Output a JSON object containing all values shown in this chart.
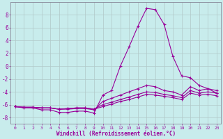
{
  "xlabel": "Windchill (Refroidissement éolien,°C)",
  "xlim": [
    -0.5,
    23.5
  ],
  "ylim": [
    -9,
    10
  ],
  "yticks": [
    -8,
    -6,
    -4,
    -2,
    0,
    2,
    4,
    6,
    8
  ],
  "xticks": [
    0,
    1,
    2,
    3,
    4,
    5,
    6,
    7,
    8,
    9,
    10,
    11,
    12,
    13,
    14,
    15,
    16,
    17,
    18,
    19,
    20,
    21,
    22,
    23
  ],
  "bg_color": "#c8ecec",
  "line_color": "#990099",
  "grid_color": "#b0c8c8",
  "lines": [
    {
      "x": [
        0,
        1,
        2,
        3,
        4,
        5,
        6,
        7,
        8,
        9,
        10,
        11,
        12,
        13,
        14,
        15,
        16,
        17,
        18,
        19,
        20,
        21,
        22,
        23
      ],
      "y": [
        -6.3,
        -6.5,
        -6.5,
        -6.8,
        -6.8,
        -7.2,
        -7.2,
        -7.0,
        -7.0,
        -7.3,
        -4.5,
        -3.8,
        0.0,
        3.0,
        6.2,
        9.0,
        8.8,
        6.5,
        1.5,
        -1.5,
        -1.8,
        -3.0,
        -3.5,
        -4.2
      ]
    },
    {
      "x": [
        0,
        1,
        2,
        3,
        4,
        5,
        6,
        7,
        8,
        9,
        10,
        11,
        12,
        13,
        14,
        15,
        16,
        17,
        18,
        19,
        20,
        21,
        22,
        23
      ],
      "y": [
        -6.3,
        -6.4,
        -6.4,
        -6.5,
        -6.5,
        -6.7,
        -6.7,
        -6.6,
        -6.6,
        -6.8,
        -5.5,
        -5.0,
        -4.5,
        -4.0,
        -3.5,
        -3.0,
        -3.2,
        -3.8,
        -4.0,
        -4.5,
        -3.2,
        -3.8,
        -3.5,
        -3.8
      ]
    },
    {
      "x": [
        0,
        1,
        2,
        3,
        4,
        5,
        6,
        7,
        8,
        9,
        10,
        11,
        12,
        13,
        14,
        15,
        16,
        17,
        18,
        19,
        20,
        21,
        22,
        23
      ],
      "y": [
        -6.3,
        -6.4,
        -6.4,
        -6.5,
        -6.5,
        -6.7,
        -6.6,
        -6.5,
        -6.5,
        -6.7,
        -6.0,
        -5.6,
        -5.2,
        -4.8,
        -4.4,
        -4.0,
        -4.1,
        -4.4,
        -4.6,
        -4.9,
        -3.8,
        -4.2,
        -4.0,
        -4.2
      ]
    },
    {
      "x": [
        0,
        1,
        2,
        3,
        4,
        5,
        6,
        7,
        8,
        9,
        10,
        11,
        12,
        13,
        14,
        15,
        16,
        17,
        18,
        19,
        20,
        21,
        22,
        23
      ],
      "y": [
        -6.3,
        -6.4,
        -6.4,
        -6.5,
        -6.5,
        -6.7,
        -6.6,
        -6.5,
        -6.5,
        -6.7,
        -6.3,
        -5.9,
        -5.5,
        -5.2,
        -4.8,
        -4.4,
        -4.5,
        -4.7,
        -4.9,
        -5.2,
        -4.2,
        -4.5,
        -4.4,
        -4.6
      ]
    }
  ]
}
